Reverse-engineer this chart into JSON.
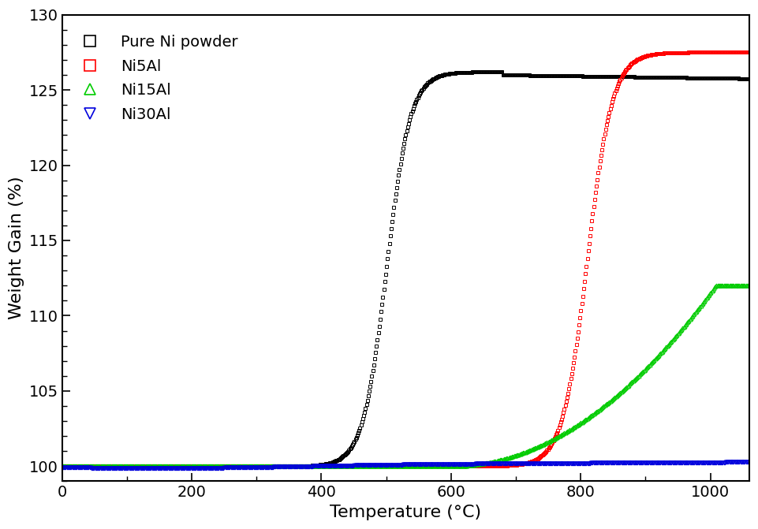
{
  "title": "",
  "xlabel": "Temperature (°C)",
  "ylabel": "Weight Gain (%)",
  "xlim": [
    0,
    1060
  ],
  "ylim": [
    99.0,
    130
  ],
  "yticks": [
    100,
    105,
    110,
    115,
    120,
    125,
    130
  ],
  "xticks": [
    0,
    200,
    400,
    600,
    800,
    1000
  ],
  "series": [
    {
      "label": "Pure Ni powder",
      "color": "#000000",
      "marker": "s",
      "markersize": 3.5
    },
    {
      "label": "Ni5Al",
      "color": "#ff0000",
      "marker": "s",
      "markersize": 3.5
    },
    {
      "label": "Ni15Al",
      "color": "#00cc00",
      "marker": "^",
      "markersize": 3.5
    },
    {
      "label": "Ni30Al",
      "color": "#0000dd",
      "marker": "v",
      "markersize": 3.5
    }
  ],
  "background_color": "#ffffff",
  "legend_loc": "upper left",
  "marker_step": 4,
  "line_width": 0.5,
  "font_size": 14,
  "label_font_size": 16,
  "tick_label_size": 14
}
